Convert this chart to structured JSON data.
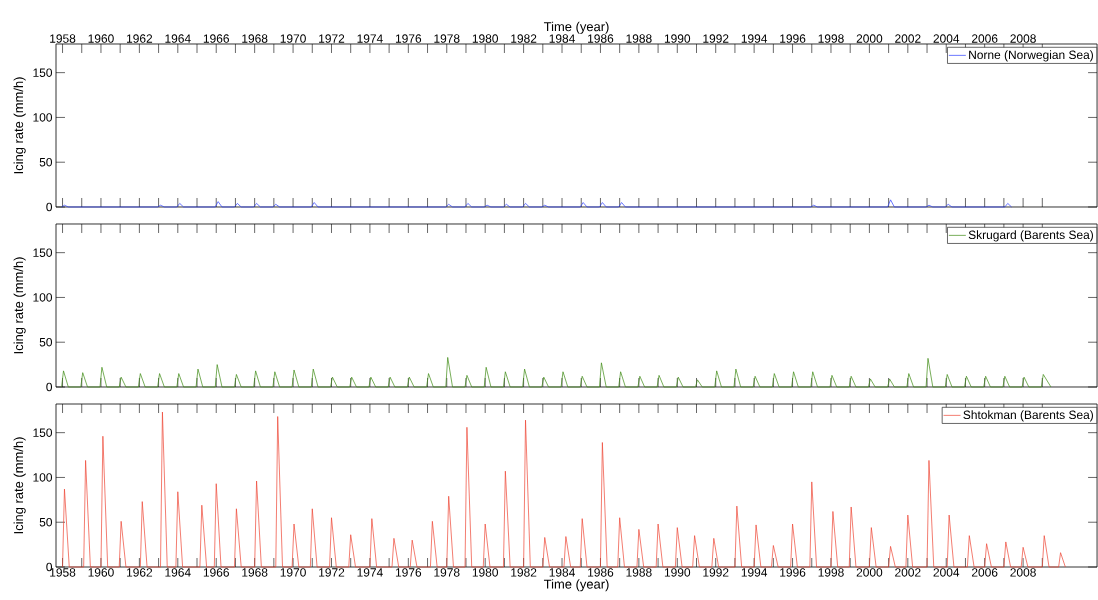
{
  "chart_data": [
    {
      "type": "line",
      "xlabel": "Time (year)",
      "ylabel": "Icing rate (mm/h)",
      "xlim": [
        1957.66,
        2011.85
      ],
      "ylim": [
        0,
        182
      ],
      "yticks": [
        0,
        50,
        100,
        150
      ],
      "legend": "top right",
      "xticks": [
        1958,
        {
          "value": 1959,
          "label": null
        },
        1960,
        {
          "value": 1961,
          "label": null
        },
        1962,
        {
          "value": 1963,
          "label": null
        },
        1964,
        {
          "value": 1965,
          "label": null
        },
        1966,
        {
          "value": 1967,
          "label": null
        },
        1968,
        {
          "value": 1969,
          "label": null
        },
        1970,
        {
          "value": 1971,
          "label": null
        },
        1972,
        {
          "value": 1973,
          "label": null
        },
        1974,
        {
          "value": 1975,
          "label": null
        },
        1976,
        {
          "value": 1977,
          "label": null
        },
        1978,
        {
          "value": 1979,
          "label": null
        },
        1980,
        {
          "value": 1981,
          "label": null
        },
        1982,
        {
          "value": 1983,
          "label": null
        },
        1984,
        {
          "value": 1985,
          "label": null
        },
        1986,
        {
          "value": 1987,
          "label": null
        },
        1988,
        {
          "value": 1989,
          "label": null
        },
        1990,
        {
          "value": 1991,
          "label": null
        },
        1992,
        {
          "value": 1993,
          "label": null
        },
        1994,
        {
          "value": 1995,
          "label": null
        },
        1996,
        {
          "value": 1997,
          "label": null
        },
        1998,
        {
          "value": 1999,
          "label": null
        },
        2000,
        {
          "value": 2001,
          "label": null
        },
        2002,
        {
          "value": 2003,
          "label": null
        },
        2004,
        {
          "value": 2005,
          "label": null
        },
        2006,
        {
          "value": 2007,
          "label": null
        },
        2008,
        {
          "value": 2009,
          "label": null
        }
      ],
      "series": [
        {
          "name": "Norne (Norwegian Sea)",
          "color": "#2a3cff",
          "x": [
            1957.95,
            1958.1,
            1958.3,
            1962.95,
            1963.1,
            1963.3,
            1963.95,
            1964.1,
            1964.3,
            1965.95,
            1966.1,
            1966.3,
            1966.95,
            1967.1,
            1967.3,
            1967.95,
            1968.1,
            1968.3,
            1968.95,
            1969.1,
            1969.3,
            1970.95,
            1971.1,
            1971.3,
            1977.95,
            1978.1,
            1978.3,
            1978.95,
            1979.1,
            1979.3,
            1979.95,
            1980.1,
            1980.3,
            1980.95,
            1981.1,
            1981.3,
            1981.95,
            1982.1,
            1982.3,
            1982.95,
            1983.1,
            1983.3,
            1984.95,
            1985.1,
            1985.3,
            1985.95,
            1986.1,
            1986.3,
            1986.95,
            1987.1,
            1987.3,
            1996.95,
            1997.1,
            1997.3,
            2000.95,
            2001.1,
            2001.3,
            2002.95,
            2003.1,
            2003.3,
            2003.95,
            2004.1,
            2004.3,
            2007.05,
            2007.2,
            2007.4
          ],
          "values": [
            0,
            2,
            0,
            0,
            2,
            0,
            0,
            4,
            0,
            0,
            6,
            0,
            0,
            4,
            0,
            0,
            4,
            0,
            0,
            3,
            0,
            0,
            5,
            0,
            0,
            3,
            0,
            0,
            4,
            0,
            0,
            2,
            0,
            0,
            3,
            0,
            0,
            4,
            0,
            0,
            2,
            0,
            0,
            5,
            0,
            0,
            5,
            0,
            0,
            5,
            0,
            0,
            2,
            0,
            0,
            8,
            0,
            0,
            2,
            0,
            0,
            3,
            0,
            0,
            4,
            0
          ]
        }
      ]
    },
    {
      "type": "line",
      "ylabel": "Icing rate (mm/h)",
      "xlim": [
        1957.66,
        2011.85
      ],
      "ylim": [
        0,
        182
      ],
      "yticks": [
        0,
        50,
        100,
        150
      ],
      "legend": "top right",
      "tick_labels": "y",
      "xticks": [
        {
          "value": 1958,
          "label": null
        },
        {
          "value": 1959,
          "label": null
        },
        {
          "value": 1960,
          "label": null
        },
        {
          "value": 1961,
          "label": null
        },
        {
          "value": 1962,
          "label": null
        },
        {
          "value": 1963,
          "label": null
        },
        {
          "value": 1964,
          "label": null
        },
        {
          "value": 1965,
          "label": null
        },
        {
          "value": 1966,
          "label": null
        },
        {
          "value": 1967,
          "label": null
        },
        {
          "value": 1968,
          "label": null
        },
        {
          "value": 1969,
          "label": null
        },
        {
          "value": 1970,
          "label": null
        },
        {
          "value": 1971,
          "label": null
        },
        {
          "value": 1972,
          "label": null
        },
        {
          "value": 1973,
          "label": null
        },
        {
          "value": 1974,
          "label": null
        },
        {
          "value": 1975,
          "label": null
        },
        {
          "value": 1976,
          "label": null
        },
        {
          "value": 1977,
          "label": null
        },
        {
          "value": 1978,
          "label": null
        },
        {
          "value": 1979,
          "label": null
        },
        {
          "value": 1980,
          "label": null
        },
        {
          "value": 1981,
          "label": null
        },
        {
          "value": 1982,
          "label": null
        },
        {
          "value": 1983,
          "label": null
        },
        {
          "value": 1984,
          "label": null
        },
        {
          "value": 1985,
          "label": null
        },
        {
          "value": 1986,
          "label": null
        },
        {
          "value": 1987,
          "label": null
        },
        {
          "value": 1988,
          "label": null
        },
        {
          "value": 1989,
          "label": null
        },
        {
          "value": 1990,
          "label": null
        },
        {
          "value": 1991,
          "label": null
        },
        {
          "value": 1992,
          "label": null
        },
        {
          "value": 1993,
          "label": null
        },
        {
          "value": 1994,
          "label": null
        },
        {
          "value": 1995,
          "label": null
        },
        {
          "value": 1996,
          "label": null
        },
        {
          "value": 1997,
          "label": null
        },
        {
          "value": 1998,
          "label": null
        },
        {
          "value": 1999,
          "label": null
        },
        {
          "value": 2000,
          "label": null
        },
        {
          "value": 2001,
          "label": null
        },
        {
          "value": 2002,
          "label": null
        },
        {
          "value": 2003,
          "label": null
        },
        {
          "value": 2004,
          "label": null
        },
        {
          "value": 2005,
          "label": null
        },
        {
          "value": 2006,
          "label": null
        },
        {
          "value": 2007,
          "label": null
        },
        {
          "value": 2008,
          "label": null
        },
        {
          "value": 2009,
          "label": null
        }
      ],
      "series": [
        {
          "name": "Skrugard (Barents Sea)",
          "color": "#3c8a12",
          "x": [
            1957.95,
            1958.05,
            1958.3,
            1958.95,
            1959.05,
            1959.3,
            1959.95,
            1960.05,
            1960.3,
            1960.95,
            1961.05,
            1961.3,
            1961.95,
            1962.05,
            1962.3,
            1962.95,
            1963.05,
            1963.3,
            1963.95,
            1964.05,
            1964.3,
            1964.95,
            1965.05,
            1965.3,
            1965.95,
            1966.05,
            1966.3,
            1966.95,
            1967.05,
            1967.3,
            1967.95,
            1968.05,
            1968.3,
            1968.95,
            1969.05,
            1969.3,
            1969.95,
            1970.05,
            1970.3,
            1970.95,
            1971.05,
            1971.3,
            1971.95,
            1972.05,
            1972.3,
            1972.95,
            1973.05,
            1973.3,
            1973.95,
            1974.05,
            1974.3,
            1974.95,
            1975.05,
            1975.3,
            1975.95,
            1976.05,
            1976.3,
            1976.95,
            1977.05,
            1977.3,
            1977.95,
            1978.05,
            1978.3,
            1978.95,
            1979.05,
            1979.3,
            1979.95,
            1980.05,
            1980.3,
            1980.95,
            1981.05,
            1981.3,
            1981.95,
            1982.05,
            1982.3,
            1982.95,
            1983.05,
            1983.3,
            1983.95,
            1984.05,
            1984.3,
            1984.95,
            1985.05,
            1985.3,
            1985.95,
            1986.05,
            1986.3,
            1986.95,
            1987.05,
            1987.3,
            1987.95,
            1988.05,
            1988.3,
            1988.95,
            1989.05,
            1989.3,
            1989.95,
            1990.05,
            1990.3,
            1990.95,
            1991.05,
            1991.3,
            1991.95,
            1992.05,
            1992.3,
            1992.95,
            1993.05,
            1993.3,
            1993.95,
            1994.05,
            1994.3,
            1994.95,
            1995.05,
            1995.3,
            1995.95,
            1996.05,
            1996.3,
            1996.95,
            1997.05,
            1997.3,
            1997.95,
            1998.05,
            1998.3,
            1998.95,
            1999.05,
            1999.3,
            1999.95,
            2000.05,
            2000.3,
            2000.95,
            2001.05,
            2001.3,
            2001.95,
            2002.05,
            2002.3,
            2002.95,
            2003.05,
            2003.3,
            2003.95,
            2004.05,
            2004.3,
            2004.95,
            2005.05,
            2005.3,
            2005.95,
            2006.05,
            2006.3,
            2006.95,
            2007.05,
            2007.3,
            2007.95,
            2008.05,
            2008.3,
            2008.95,
            2009.05,
            2009.45
          ],
          "values": [
            0,
            18,
            0,
            0,
            16,
            0,
            0,
            22,
            0,
            0,
            11,
            0,
            0,
            15,
            0,
            0,
            15,
            0,
            0,
            15,
            0,
            0,
            20,
            0,
            0,
            25,
            0,
            0,
            14,
            0,
            0,
            18,
            0,
            0,
            17,
            0,
            0,
            19,
            0,
            0,
            20,
            0,
            0,
            11,
            0,
            0,
            11,
            0,
            0,
            11,
            0,
            0,
            11,
            0,
            0,
            11,
            0,
            0,
            15,
            0,
            0,
            33,
            0,
            0,
            13,
            0,
            0,
            22,
            0,
            0,
            17,
            0,
            0,
            20,
            0,
            0,
            11,
            0,
            0,
            17,
            0,
            0,
            12,
            0,
            0,
            27,
            0,
            0,
            17,
            0,
            0,
            12,
            0,
            0,
            13,
            0,
            0,
            11,
            0,
            0,
            8,
            0,
            0,
            18,
            0,
            0,
            20,
            0,
            0,
            12,
            0,
            0,
            15,
            0,
            0,
            17,
            0,
            0,
            17,
            0,
            0,
            13,
            0,
            0,
            12,
            0,
            0,
            9,
            0,
            0,
            9,
            0,
            0,
            15,
            0,
            0,
            32,
            0,
            0,
            14,
            0,
            0,
            12,
            0,
            0,
            12,
            0,
            0,
            12,
            0,
            0,
            11,
            0,
            0,
            14,
            0
          ]
        }
      ]
    },
    {
      "type": "line",
      "xlabel": "Time (year)",
      "ylabel": "Icing rate (mm/h)",
      "xlim": [
        1957.66,
        2011.85
      ],
      "ylim": [
        0,
        182
      ],
      "yticks": [
        0,
        50,
        100,
        150
      ],
      "legend": "top right",
      "xticks": [
        1958,
        {
          "value": 1959,
          "label": null
        },
        1960,
        {
          "value": 1961,
          "label": null
        },
        1962,
        {
          "value": 1963,
          "label": null
        },
        1964,
        {
          "value": 1965,
          "label": null
        },
        1966,
        {
          "value": 1967,
          "label": null
        },
        1968,
        {
          "value": 1969,
          "label": null
        },
        1970,
        {
          "value": 1971,
          "label": null
        },
        1972,
        {
          "value": 1973,
          "label": null
        },
        1974,
        {
          "value": 1975,
          "label": null
        },
        1976,
        {
          "value": 1977,
          "label": null
        },
        1978,
        {
          "value": 1979,
          "label": null
        },
        1980,
        {
          "value": 1981,
          "label": null
        },
        1982,
        {
          "value": 1983,
          "label": null
        },
        1984,
        {
          "value": 1985,
          "label": null
        },
        1986,
        {
          "value": 1987,
          "label": null
        },
        1988,
        {
          "value": 1989,
          "label": null
        },
        1990,
        {
          "value": 1991,
          "label": null
        },
        1992,
        {
          "value": 1993,
          "label": null
        },
        1994,
        {
          "value": 1995,
          "label": null
        },
        1996,
        {
          "value": 1997,
          "label": null
        },
        1998,
        {
          "value": 1999,
          "label": null
        },
        2000,
        {
          "value": 2001,
          "label": null
        },
        2002,
        {
          "value": 2003,
          "label": null
        },
        2004,
        {
          "value": 2005,
          "label": null
        },
        2006,
        {
          "value": 2007,
          "label": null
        },
        2008,
        {
          "value": 2009,
          "label": null
        }
      ],
      "series": [
        {
          "name": "Shtokman (Barents Sea)",
          "color": "#ee4433",
          "x": [
            1958.0,
            1958.1,
            1958.35,
            1959.1,
            1959.2,
            1959.45,
            1960.0,
            1960.1,
            1960.35,
            1960.95,
            1961.05,
            1961.3,
            1962.05,
            1962.15,
            1962.4,
            1963.1,
            1963.2,
            1963.45,
            1963.9,
            1964.0,
            1964.25,
            1965.15,
            1965.25,
            1965.5,
            1965.9,
            1966.0,
            1966.25,
            1966.95,
            1967.05,
            1967.3,
            1968.0,
            1968.1,
            1968.35,
            1969.1,
            1969.2,
            1969.45,
            1969.95,
            1970.05,
            1970.3,
            1970.9,
            1971.0,
            1971.25,
            1971.9,
            1972.0,
            1972.25,
            1972.9,
            1973.0,
            1973.25,
            1974.0,
            1974.1,
            1974.35,
            1975.15,
            1975.25,
            1975.5,
            1976.1,
            1976.2,
            1976.45,
            1977.15,
            1977.25,
            1977.5,
            1978.0,
            1978.1,
            1978.35,
            1978.95,
            1979.05,
            1979.3,
            1979.9,
            1980.0,
            1980.25,
            1980.95,
            1981.05,
            1981.3,
            1982.0,
            1982.1,
            1982.35,
            1983.0,
            1983.1,
            1983.35,
            1984.1,
            1984.2,
            1984.45,
            1984.95,
            1985.05,
            1985.3,
            1986.0,
            1986.1,
            1986.35,
            1986.9,
            1987.0,
            1987.25,
            1987.9,
            1988.0,
            1988.25,
            1988.9,
            1989.0,
            1989.25,
            1989.9,
            1990.0,
            1990.25,
            1990.8,
            1990.9,
            1991.15,
            1991.8,
            1991.9,
            1992.15,
            1993.0,
            1993.1,
            1993.35,
            1994.0,
            1994.1,
            1994.35,
            1994.9,
            1995.0,
            1995.25,
            1995.9,
            1996.0,
            1996.25,
            1996.9,
            1997.0,
            1997.25,
            1998.0,
            1998.1,
            1998.35,
            1998.95,
            1999.05,
            1999.3,
            2000.0,
            2000.1,
            2000.35,
            2001.0,
            2001.1,
            2001.35,
            2001.9,
            2002.0,
            2002.25,
            2003.0,
            2003.1,
            2003.35,
            2004.05,
            2004.15,
            2004.4,
            2005.1,
            2005.2,
            2005.45,
            2006.0,
            2006.1,
            2006.35,
            2007.0,
            2007.1,
            2007.35,
            2007.9,
            2008.0,
            2008.25,
            2009.0,
            2009.1,
            2009.35,
            2009.85,
            2009.95,
            2010.2
          ],
          "values": [
            0,
            87,
            0,
            0,
            119,
            0,
            0,
            146,
            0,
            0,
            51,
            0,
            0,
            73,
            0,
            0,
            173,
            0,
            0,
            84,
            0,
            0,
            69,
            0,
            0,
            93,
            0,
            0,
            65,
            0,
            0,
            96,
            0,
            0,
            168,
            0,
            0,
            48,
            0,
            0,
            65,
            0,
            0,
            55,
            0,
            0,
            36,
            0,
            0,
            54,
            0,
            0,
            32,
            0,
            0,
            30,
            0,
            0,
            51,
            0,
            0,
            79,
            0,
            0,
            156,
            0,
            0,
            48,
            0,
            0,
            107,
            0,
            0,
            164,
            0,
            0,
            33,
            0,
            0,
            34,
            0,
            0,
            54,
            0,
            0,
            139,
            0,
            0,
            55,
            0,
            0,
            42,
            0,
            0,
            48,
            0,
            0,
            44,
            0,
            0,
            35,
            0,
            0,
            32,
            0,
            0,
            68,
            0,
            0,
            47,
            0,
            0,
            24,
            0,
            0,
            48,
            0,
            0,
            95,
            0,
            0,
            62,
            0,
            0,
            67,
            0,
            0,
            44,
            0,
            0,
            23,
            0,
            0,
            58,
            0,
            0,
            119,
            0,
            0,
            58,
            0,
            0,
            35,
            0,
            0,
            26,
            0,
            0,
            28,
            0,
            0,
            22,
            0,
            0,
            35,
            0,
            0,
            16,
            0
          ]
        }
      ]
    }
  ]
}
